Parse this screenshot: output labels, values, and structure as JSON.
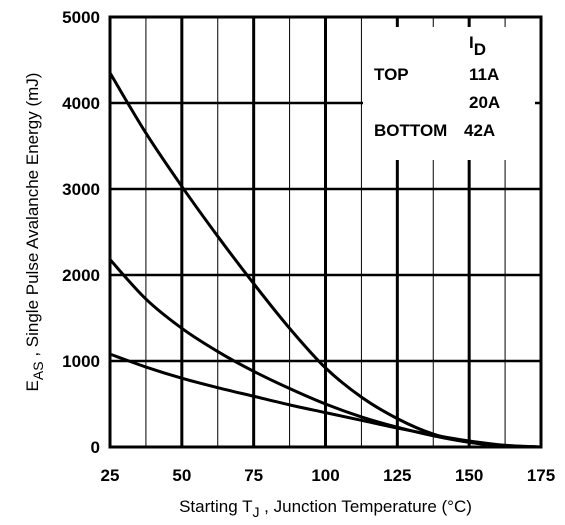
{
  "chart_data": {
    "type": "line",
    "xlabel": {
      "prefix": "Starting T",
      "sub": "J",
      "suffix": " , Junction Temperature (°C)"
    },
    "ylabel": {
      "main": "E",
      "sub": "AS",
      "suffix": " , Single Pulse Avalanche Energy (mJ)"
    },
    "xlim": [
      25,
      175
    ],
    "ylim": [
      0,
      5000
    ],
    "x_ticks": [
      "25",
      "50",
      "75",
      "100",
      "125",
      "150",
      "175"
    ],
    "y_ticks": [
      "0",
      "1000",
      "2000",
      "3000",
      "4000",
      "5000"
    ],
    "x_tick_values": [
      25,
      50,
      75,
      100,
      125,
      150,
      175
    ],
    "y_tick_values": [
      0,
      1000,
      2000,
      3000,
      4000,
      5000
    ],
    "grid": true,
    "legend": {
      "placement": "top-right",
      "header_main": "I",
      "header_sub": "D",
      "rows": [
        {
          "label": "TOP",
          "value": "11A"
        },
        {
          "label": "",
          "value": "20A"
        },
        {
          "label": "BOTTOM",
          "value": "42A"
        }
      ]
    },
    "series": [
      {
        "x": [
          25,
          37.5,
          50,
          62.5,
          75,
          87.5,
          100,
          112.5,
          125,
          137.5,
          150,
          162.5,
          175
        ],
        "values": [
          4350,
          3650,
          3030,
          2450,
          1900,
          1380,
          920,
          580,
          330,
          150,
          55,
          15,
          0
        ]
      },
      {
        "x": [
          25,
          37.5,
          50,
          62.5,
          75,
          87.5,
          100,
          112.5,
          125,
          137.5,
          150,
          162.5,
          175
        ],
        "values": [
          2180,
          1720,
          1380,
          1110,
          880,
          680,
          500,
          350,
          230,
          130,
          55,
          15,
          0
        ]
      },
      {
        "x": [
          25,
          37.5,
          50,
          62.5,
          75,
          87.5,
          100,
          112.5,
          125,
          137.5,
          150,
          162.5,
          175
        ],
        "values": [
          1080,
          930,
          800,
          690,
          590,
          490,
          400,
          310,
          220,
          140,
          70,
          20,
          0
        ]
      }
    ]
  }
}
